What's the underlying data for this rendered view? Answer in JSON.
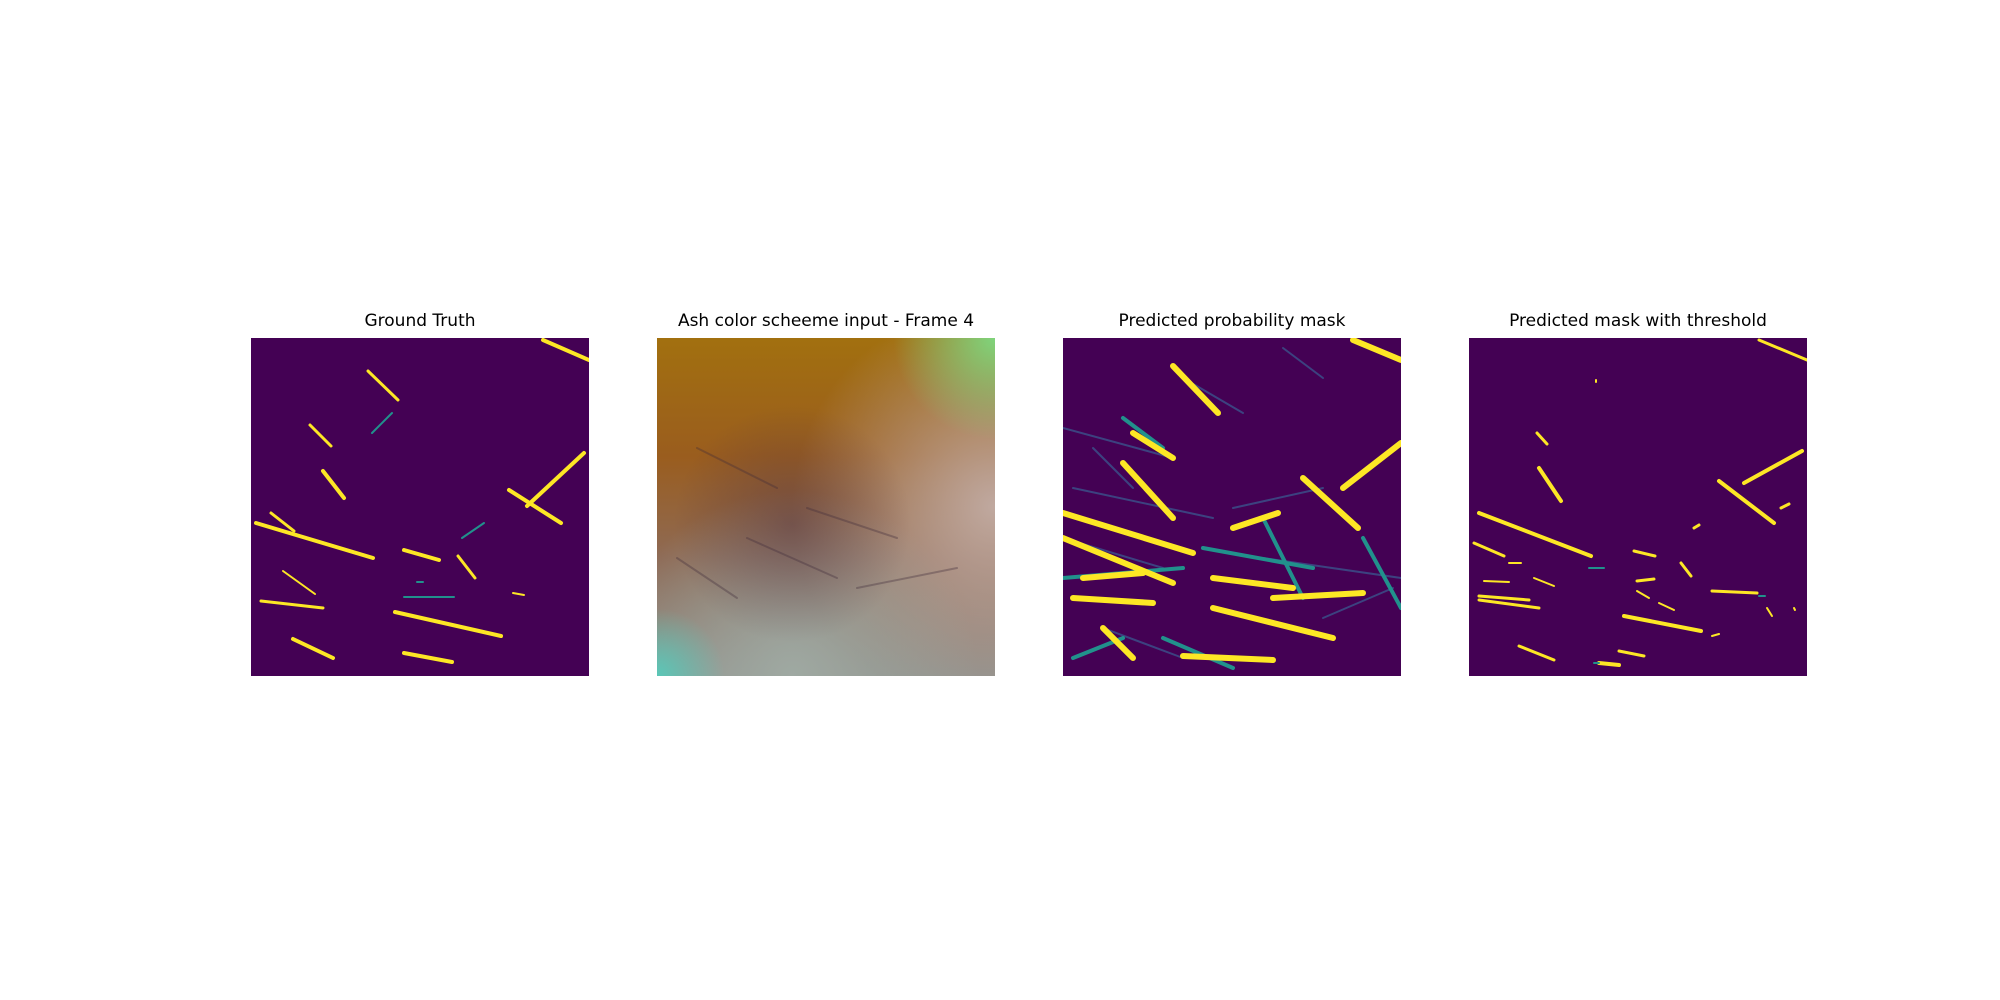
{
  "panels": [
    {
      "title": "Ground Truth",
      "kind": "binary-mask"
    },
    {
      "title": "Ash color scheeme input - Frame 4",
      "kind": "satellite-image"
    },
    {
      "title": "Predicted probability mask",
      "kind": "probability-mask"
    },
    {
      "title": "Predicted mask with threshold",
      "kind": "binary-mask"
    }
  ],
  "colors": {
    "background": "#440154",
    "mask_positive": "#fde725",
    "mask_mid": "#21918c",
    "mask_low": "#3b528b"
  }
}
